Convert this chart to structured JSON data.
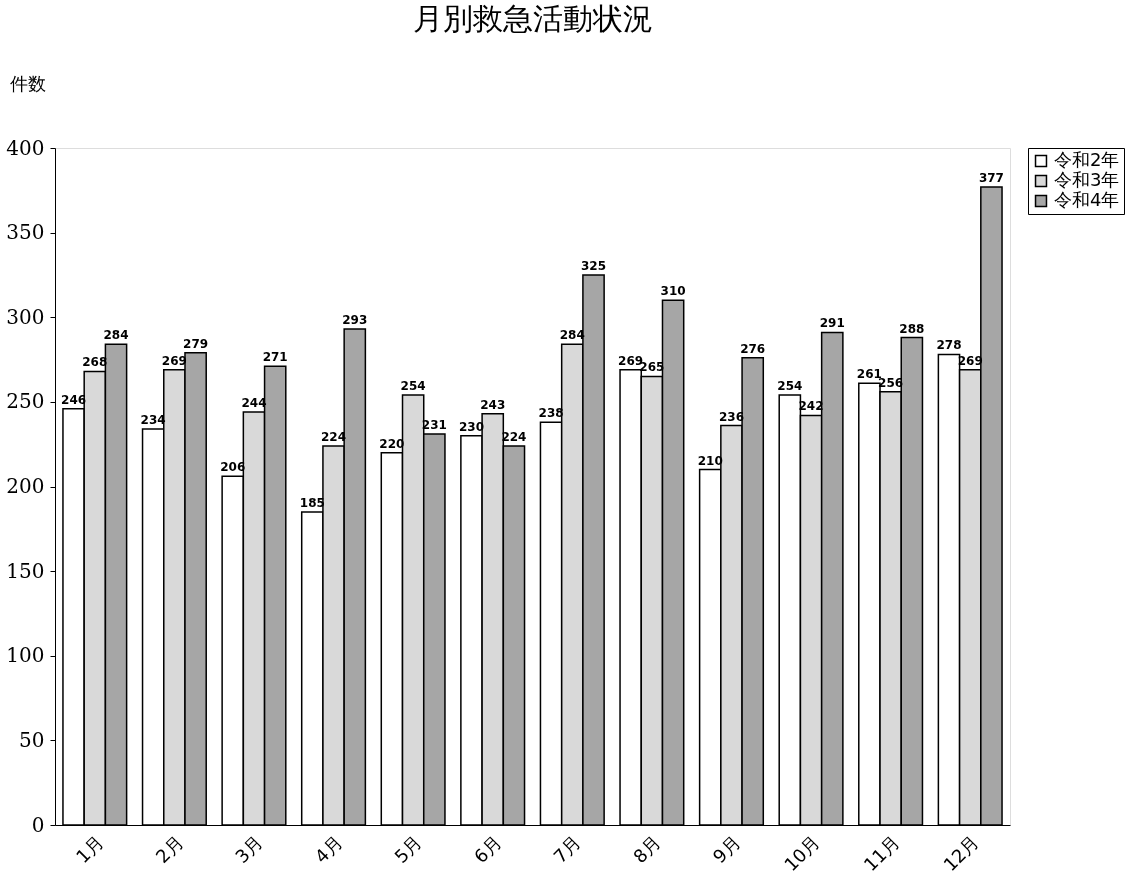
{
  "chart_data": {
    "type": "bar",
    "title": "月別救急活動状況",
    "ylabel": "件数",
    "categories": [
      "1月",
      "2月",
      "3月",
      "4月",
      "5月",
      "6月",
      "7月",
      "8月",
      "9月",
      "10月",
      "11月",
      "12月"
    ],
    "series": [
      {
        "name": "令和2年",
        "color": "#ffffff",
        "values": [
          246,
          234,
          206,
          185,
          220,
          230,
          238,
          269,
          210,
          254,
          261,
          278
        ]
      },
      {
        "name": "令和3年",
        "color": "#d9d9d9",
        "values": [
          268,
          269,
          244,
          224,
          254,
          243,
          284,
          265,
          236,
          242,
          256,
          269
        ]
      },
      {
        "name": "令和4年",
        "color": "#a6a6a6",
        "values": [
          284,
          279,
          271,
          293,
          231,
          224,
          325,
          310,
          276,
          291,
          288,
          377
        ]
      }
    ],
    "ylim": [
      0,
      400
    ],
    "yticks": [
      0,
      50,
      100,
      150,
      200,
      250,
      300,
      350,
      400
    ],
    "data_labels": true,
    "grid": false,
    "legend": "right"
  }
}
